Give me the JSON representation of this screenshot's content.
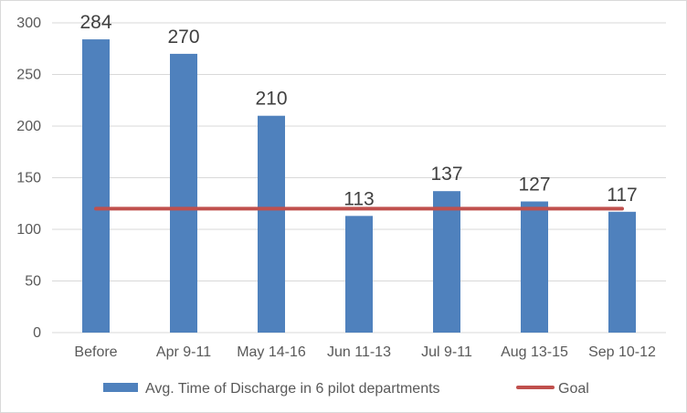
{
  "chart_data": {
    "type": "bar",
    "categories": [
      "Before",
      "Apr 9-11",
      "May 14-16",
      "Jun 11-13",
      "Jul 9-11",
      "Aug 13-15",
      "Sep 10-12"
    ],
    "series": [
      {
        "name": "Avg. Time of Discharge in 6 pilot departments",
        "type": "bar",
        "values": [
          284,
          270,
          210,
          113,
          137,
          127,
          117
        ],
        "color": "#4f81bd"
      },
      {
        "name": "Goal",
        "type": "line",
        "values": [
          120,
          120,
          120,
          120,
          120,
          120,
          120
        ],
        "color": "#c0504d"
      }
    ],
    "ylim": [
      0,
      300
    ],
    "yticks": [
      0,
      50,
      100,
      150,
      200,
      250,
      300
    ],
    "grid": true,
    "legend": "bottom",
    "data_labels": true
  }
}
